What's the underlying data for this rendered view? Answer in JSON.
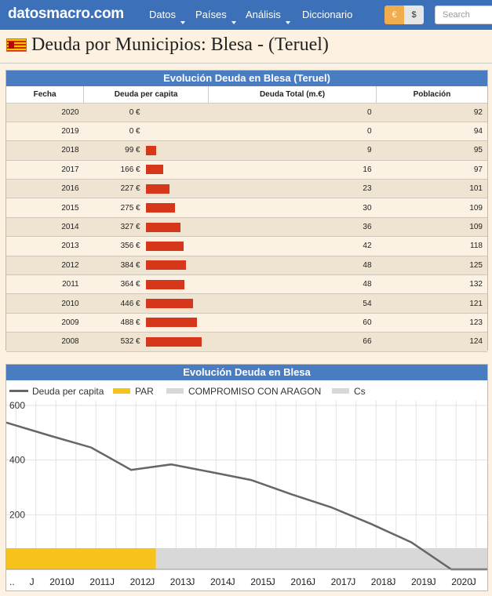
{
  "nav": {
    "logo": "datosmacro.com",
    "items": [
      "Datos",
      "Países",
      "Análisis",
      "Diccionario"
    ],
    "currency_eur": "€",
    "currency_usd": "$",
    "search_placeholder": "Search"
  },
  "page": {
    "title": "Deuda por Municipios: Blesa - (Teruel)"
  },
  "table": {
    "title": "Evolución Deuda en Blesa (Teruel)",
    "headers": [
      "Fecha",
      "Deuda per capita",
      "Deuda Total (m.€)",
      "Población"
    ],
    "rows": [
      {
        "fecha": "2020",
        "per_capita": "0 €",
        "per_capita_value": 0,
        "total": "0",
        "poblacion": "92"
      },
      {
        "fecha": "2019",
        "per_capita": "0 €",
        "per_capita_value": 0,
        "total": "0",
        "poblacion": "94"
      },
      {
        "fecha": "2018",
        "per_capita": "99 €",
        "per_capita_value": 99,
        "total": "9",
        "poblacion": "95"
      },
      {
        "fecha": "2017",
        "per_capita": "166 €",
        "per_capita_value": 166,
        "total": "16",
        "poblacion": "97"
      },
      {
        "fecha": "2016",
        "per_capita": "227 €",
        "per_capita_value": 227,
        "total": "23",
        "poblacion": "101"
      },
      {
        "fecha": "2015",
        "per_capita": "275 €",
        "per_capita_value": 275,
        "total": "30",
        "poblacion": "109"
      },
      {
        "fecha": "2014",
        "per_capita": "327 €",
        "per_capita_value": 327,
        "total": "36",
        "poblacion": "109"
      },
      {
        "fecha": "2013",
        "per_capita": "356 €",
        "per_capita_value": 356,
        "total": "42",
        "poblacion": "118"
      },
      {
        "fecha": "2012",
        "per_capita": "384 €",
        "per_capita_value": 384,
        "total": "48",
        "poblacion": "125"
      },
      {
        "fecha": "2011",
        "per_capita": "364 €",
        "per_capita_value": 364,
        "total": "48",
        "poblacion": "132"
      },
      {
        "fecha": "2010",
        "per_capita": "446 €",
        "per_capita_value": 446,
        "total": "54",
        "poblacion": "121"
      },
      {
        "fecha": "2009",
        "per_capita": "488 €",
        "per_capita_value": 488,
        "total": "60",
        "poblacion": "123"
      },
      {
        "fecha": "2008",
        "per_capita": "532 €",
        "per_capita_value": 532,
        "total": "66",
        "poblacion": "124"
      }
    ]
  },
  "chart_data": {
    "type": "line",
    "title": "Evolución Deuda en Blesa",
    "legend": [
      "Deuda per capita",
      "PAR",
      "COMPROMISO CON ARAGON",
      "Cs"
    ],
    "series": [
      {
        "name": "Deuda per capita",
        "x": [
          2008,
          2009,
          2010,
          2011,
          2012,
          2013,
          2014,
          2015,
          2016,
          2017,
          2018,
          2019,
          2020
        ],
        "values": [
          532,
          488,
          446,
          364,
          384,
          356,
          327,
          275,
          227,
          166,
          99,
          0,
          0
        ]
      }
    ],
    "bands": [
      {
        "name": "PAR",
        "from": "2007-01",
        "to": "2011-06",
        "color": "#f8c21c"
      },
      {
        "name": "COMPROMISO CON ARAGON",
        "from": "2011-06",
        "to": "2021-01",
        "color": "#d8d8d8"
      }
    ],
    "yticks": [
      "600",
      "400",
      "200"
    ],
    "ylim": [
      0,
      600
    ],
    "xticks": [
      "..",
      "J",
      "2010",
      "J",
      "2011",
      "J",
      "2012",
      "J",
      "2013",
      "J",
      "2014",
      "J",
      "2015",
      "J",
      "2016",
      "J",
      "2017",
      "J",
      "2018",
      "J",
      "2019",
      "J",
      "2020",
      "J"
    ],
    "colors": {
      "line": "#666666",
      "par": "#f8c21c",
      "compromiso": "#d8d8d8",
      "cs": "#d8d8d8"
    },
    "grid": true
  }
}
